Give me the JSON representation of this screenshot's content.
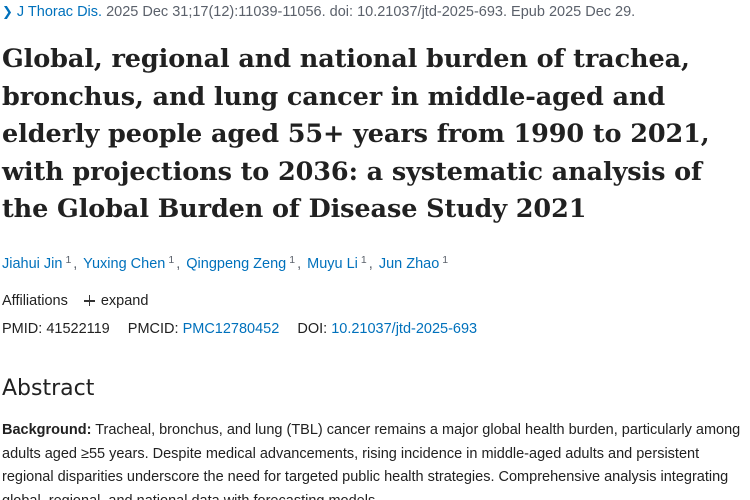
{
  "citation": {
    "journal": "J Thorac Dis.",
    "details": " 2025 Dec 31;17(12):11039-11056. doi: 10.21037/jtd-2025-693. Epub 2025 Dec 29."
  },
  "title": "Global, regional and national burden of trachea, bronchus, and lung cancer in middle-aged and elderly people aged 55+ years from 1990 to 2021, with projections to 2036: a systematic analysis of the Global Burden of Disease Study 2021",
  "authors": [
    {
      "name": "Jiahui Jin",
      "aff": "1"
    },
    {
      "name": "Yuxing Chen",
      "aff": "1"
    },
    {
      "name": "Qingpeng Zeng",
      "aff": "1"
    },
    {
      "name": "Muyu Li",
      "aff": "1"
    },
    {
      "name": "Jun Zhao",
      "aff": "1"
    }
  ],
  "affiliations": {
    "label": "Affiliations",
    "expand_label": "expand"
  },
  "ids": {
    "pmid_label": "PMID:",
    "pmid": "41522119",
    "pmcid_label": "PMCID:",
    "pmcid": "PMC12780452",
    "doi_label": "DOI:",
    "doi": "10.21037/jtd-2025-693"
  },
  "abstract": {
    "heading": "Abstract",
    "background_label": "Background:",
    "background_text": " Tracheal, bronchus, and lung (TBL) cancer remains a major global health burden, particularly among adults aged ≥55 years. Despite medical advancements, rising incidence in middle-aged adults and persistent regional disparities underscore the need for targeted public health strategies. Comprehensive analysis integrating global, regional, and national data with forecasting models"
  },
  "colors": {
    "link": "#0071bc",
    "text": "#212121",
    "muted": "#5b616b"
  }
}
